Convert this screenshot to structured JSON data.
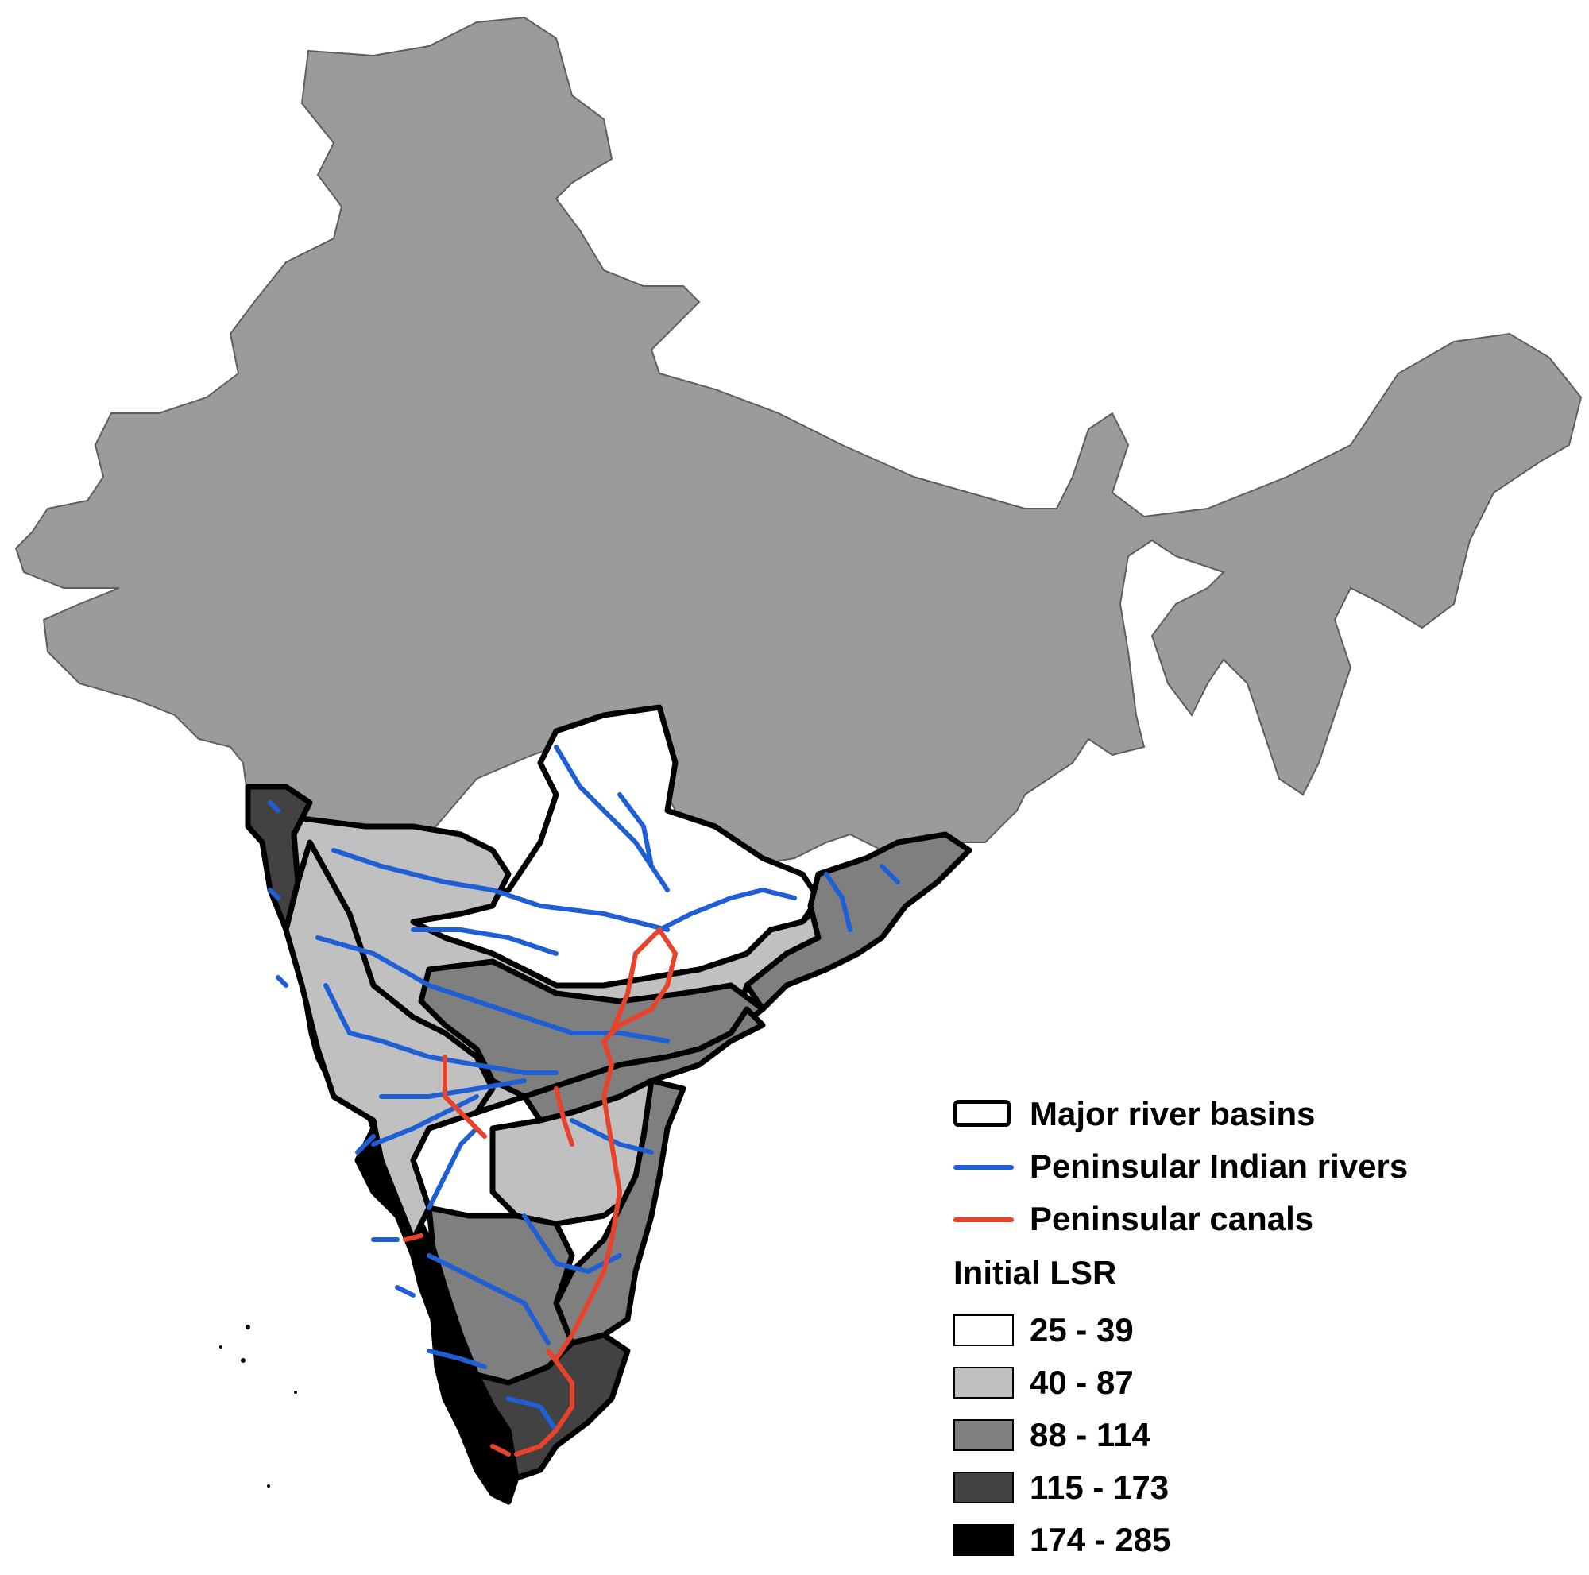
{
  "map": {
    "colors": {
      "land": "#9b9b9b",
      "land_stroke": "#5e5e5e",
      "basin_border": "#000000",
      "river": "#1f5fd6",
      "canal": "#e8432a"
    },
    "classes": [
      {
        "range": "25 - 39",
        "color": "#ffffff"
      },
      {
        "range": "40 - 87",
        "color": "#c0c0c0"
      },
      {
        "range": "88 - 114",
        "color": "#7f7f7f"
      },
      {
        "range": "115 - 173",
        "color": "#424242"
      },
      {
        "range": "174 - 285",
        "color": "#000000"
      }
    ]
  },
  "legend": {
    "basins_label": "Major river basins",
    "rivers_label": "Peninsular Indian rivers",
    "canals_label": "Peninsular canals",
    "lsr_title": "Initial LSR"
  }
}
